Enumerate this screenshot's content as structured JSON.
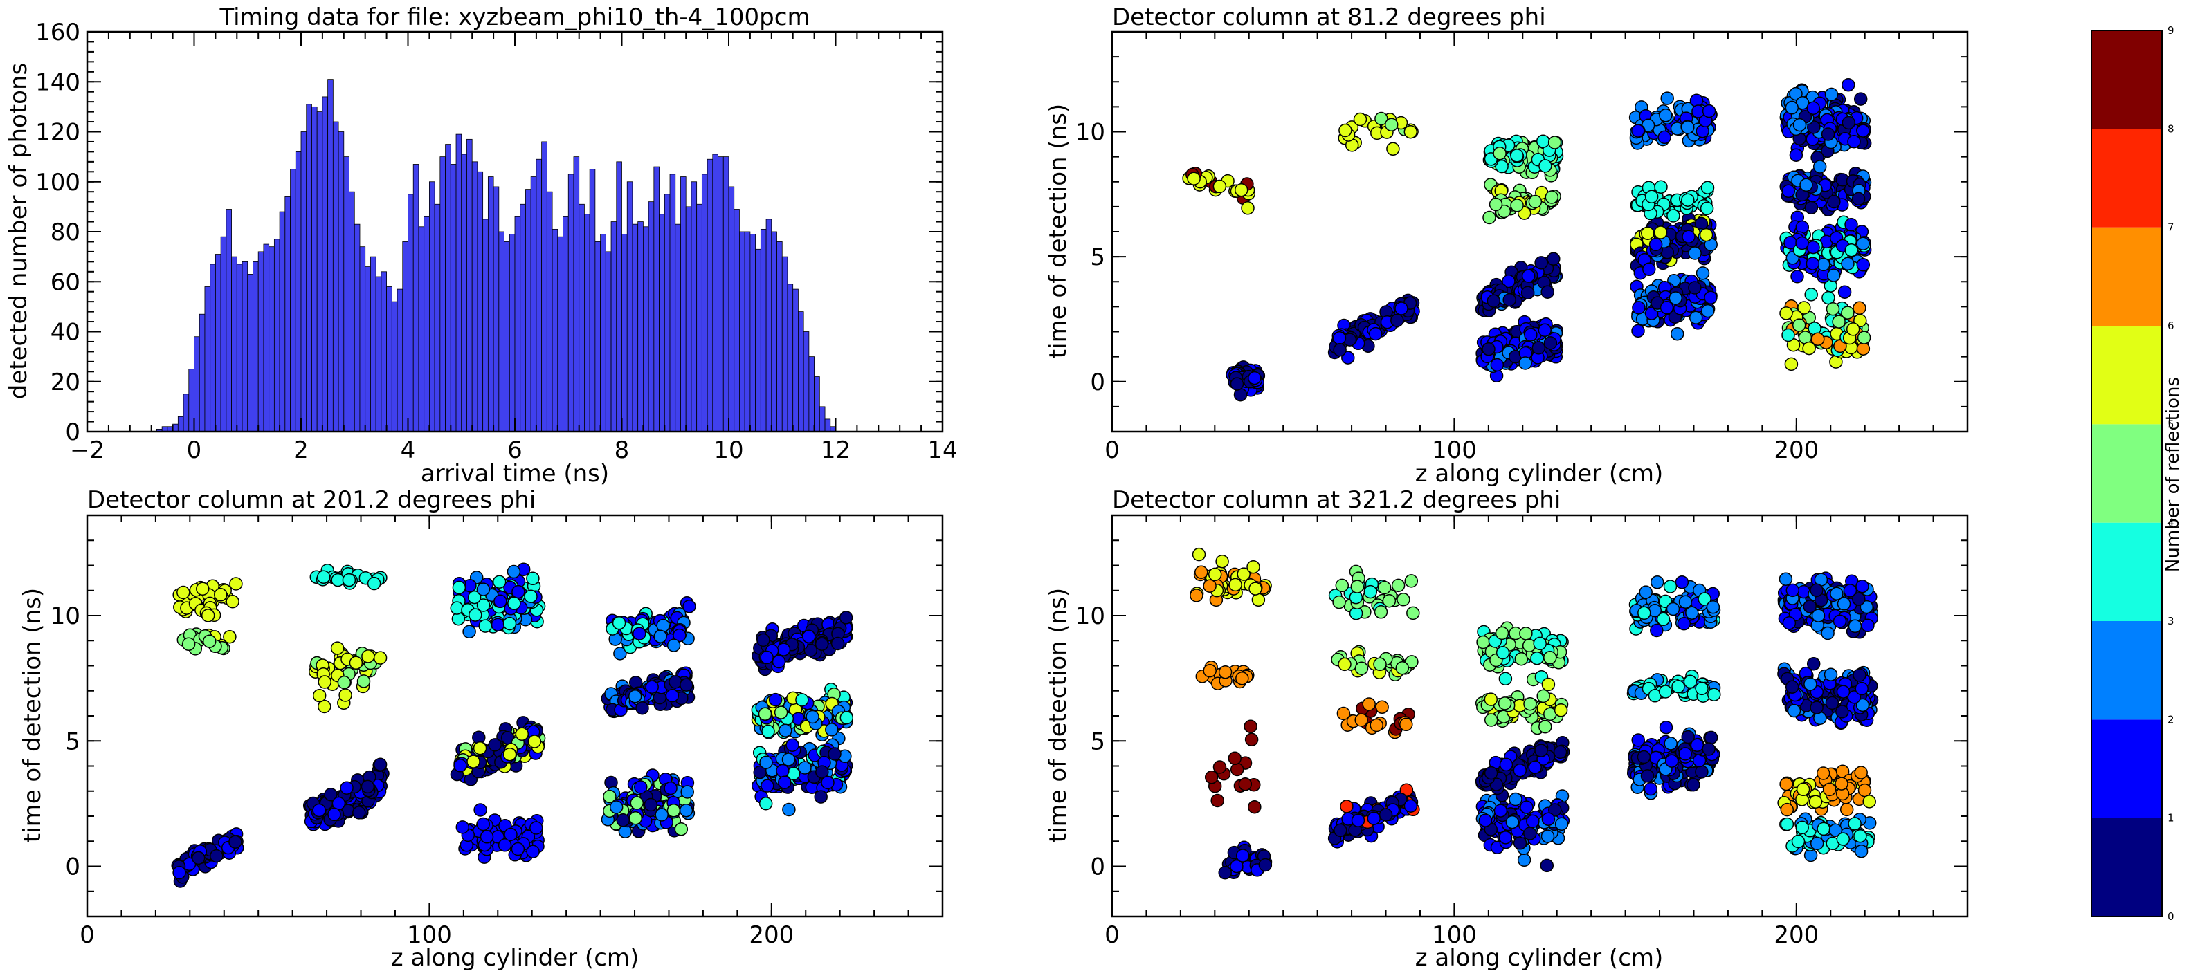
{
  "chart_data": [
    {
      "type": "bar",
      "title": "Timing data for file: xyzbeam_phi10_th-4_100pcm",
      "xlabel": "arrival time (ns)",
      "ylabel": "detected number of photons",
      "xlim": [
        -2,
        14
      ],
      "ylim": [
        0,
        160
      ],
      "xticks": [
        "−2",
        "0",
        "2",
        "4",
        "6",
        "8",
        "10",
        "12",
        "14"
      ],
      "yticks": [
        "0",
        "20",
        "40",
        "60",
        "80",
        "100",
        "120",
        "140",
        "160"
      ],
      "bar_color": "#4040ee",
      "bin_start": -0.7,
      "bin_width": 0.1,
      "values": [
        1,
        2,
        2,
        3,
        6,
        15,
        25,
        38,
        47,
        58,
        67,
        71,
        78,
        89,
        70,
        67,
        68,
        63,
        68,
        72,
        75,
        74,
        77,
        88,
        94,
        105,
        112,
        120,
        131,
        130,
        128,
        134,
        141,
        124,
        120,
        110,
        96,
        83,
        74,
        66,
        70,
        62,
        64,
        58,
        52,
        57,
        76,
        95,
        107,
        82,
        86,
        100,
        91,
        110,
        115,
        107,
        119,
        111,
        117,
        108,
        104,
        85,
        102,
        98,
        80,
        76,
        79,
        86,
        91,
        97,
        102,
        109,
        116,
        96,
        81,
        78,
        86,
        103,
        110,
        91,
        87,
        105,
        76,
        79,
        72,
        84,
        108,
        79,
        100,
        83,
        84,
        82,
        92,
        106,
        87,
        95,
        103,
        83,
        102,
        90,
        100,
        91,
        103,
        109,
        111,
        110,
        110,
        98,
        89,
        80,
        80,
        79,
        73,
        81,
        85,
        80,
        76,
        70,
        59,
        57,
        48,
        40,
        30,
        22,
        10,
        5,
        2
      ],
      "grid": false
    },
    {
      "type": "scatter",
      "title": "Detector column at 81.2 degrees phi",
      "xlabel": "z along cylinder (cm)",
      "ylabel": "time of detection (ns)",
      "xlim": [
        0,
        250
      ],
      "ylim": [
        -2,
        14
      ],
      "xticks": [
        "0",
        "100",
        "200"
      ],
      "yticks": [
        "0",
        "5",
        "10"
      ],
      "clusters": [
        {
          "z_range": [
            35,
            43
          ],
          "t_center": 0.2,
          "t_spread": 0.5,
          "dz_dt": 0,
          "n": 55,
          "reflections": [
            0,
            0,
            0,
            1,
            1
          ]
        },
        {
          "z_range": [
            65,
            88
          ],
          "t_center": 2.2,
          "t_spread": 0.5,
          "dz_dt": 0.06,
          "n": 90,
          "reflections": [
            0,
            0,
            1,
            1
          ]
        },
        {
          "z_range": [
            108,
            130
          ],
          "t_center": 1.4,
          "t_spread": 0.9,
          "dz_dt": 0.03,
          "n": 140,
          "reflections": [
            1,
            1,
            1,
            2,
            0
          ]
        },
        {
          "z_range": [
            108,
            130
          ],
          "t_center": 3.8,
          "t_spread": 0.6,
          "dz_dt": 0.05,
          "n": 120,
          "reflections": [
            0,
            0,
            0,
            1,
            2
          ]
        },
        {
          "z_range": [
            110,
            130
          ],
          "t_center": 9.0,
          "t_spread": 0.8,
          "dz_dt": 0,
          "n": 90,
          "reflections": [
            3,
            3,
            4,
            4,
            3
          ]
        },
        {
          "z_range": [
            110,
            130
          ],
          "t_center": 7.2,
          "t_spread": 0.6,
          "dz_dt": 0,
          "n": 40,
          "reflections": [
            4,
            4,
            5
          ]
        },
        {
          "z_range": [
            153,
            175
          ],
          "t_center": 5.6,
          "t_spread": 0.8,
          "dz_dt": 0.03,
          "n": 160,
          "reflections": [
            0,
            0,
            0,
            1,
            2,
            5
          ]
        },
        {
          "z_range": [
            153,
            175
          ],
          "t_center": 3.2,
          "t_spread": 0.9,
          "dz_dt": 0.03,
          "n": 140,
          "reflections": [
            1,
            1,
            2,
            0
          ]
        },
        {
          "z_range": [
            153,
            175
          ],
          "t_center": 10.3,
          "t_spread": 0.9,
          "dz_dt": 0,
          "n": 90,
          "reflections": [
            2,
            2,
            1
          ]
        },
        {
          "z_range": [
            153,
            175
          ],
          "t_center": 7.2,
          "t_spread": 0.6,
          "dz_dt": 0,
          "n": 50,
          "reflections": [
            3,
            3,
            3
          ]
        },
        {
          "z_range": [
            197,
            220
          ],
          "t_center": 10.3,
          "t_spread": 1.2,
          "dz_dt": 0,
          "n": 180,
          "reflections": [
            1,
            1,
            2,
            0
          ]
        },
        {
          "z_range": [
            197,
            220
          ],
          "t_center": 7.7,
          "t_spread": 0.8,
          "dz_dt": 0,
          "n": 120,
          "reflections": [
            0,
            0,
            1,
            2
          ]
        },
        {
          "z_range": [
            197,
            220
          ],
          "t_center": 5.3,
          "t_spread": 1.1,
          "dz_dt": 0,
          "n": 130,
          "reflections": [
            1,
            1,
            2,
            3
          ]
        },
        {
          "z_range": [
            197,
            220
          ],
          "t_center": 2.0,
          "t_spread": 1.4,
          "dz_dt": 0,
          "n": 70,
          "reflections": [
            3,
            4,
            5,
            6
          ]
        },
        {
          "z_range": [
            22,
            40
          ],
          "t_center": 7.8,
          "t_spread": 0.5,
          "dz_dt": -0.04,
          "n": 22,
          "reflections": [
            5,
            5,
            5,
            9
          ]
        },
        {
          "z_range": [
            68,
            88
          ],
          "t_center": 10.0,
          "t_spread": 0.9,
          "dz_dt": 0,
          "n": 22,
          "reflections": [
            5,
            5,
            4
          ]
        }
      ],
      "colorbar": {
        "label": "Number of reflections",
        "ticks": [
          "0",
          "1",
          "2",
          "3",
          "4",
          "5",
          "6",
          "7",
          "8",
          "9"
        ],
        "colors": [
          "#000080",
          "#0000ff",
          "#0080ff",
          "#15ffe1",
          "#80ff80",
          "#e1ff15",
          "#ff8f00",
          "#ff2600",
          "#800000"
        ]
      }
    },
    {
      "type": "scatter",
      "title": "Detector column at 201.2 degrees phi",
      "xlabel": "z along cylinder (cm)",
      "ylabel": "time of detection (ns)",
      "xlim": [
        0,
        250
      ],
      "ylim": [
        -2,
        14
      ],
      "xticks": [
        "0",
        "100",
        "200"
      ],
      "yticks": [
        "0",
        "5",
        "10"
      ],
      "clusters": [
        {
          "z_range": [
            26,
            44
          ],
          "t_center": 0.5,
          "t_spread": 0.6,
          "dz_dt": 0.06,
          "n": 70,
          "reflections": [
            0,
            0,
            1,
            1
          ]
        },
        {
          "z_range": [
            65,
            87
          ],
          "t_center": 2.6,
          "t_spread": 0.7,
          "dz_dt": 0.07,
          "n": 110,
          "reflections": [
            0,
            0,
            1
          ]
        },
        {
          "z_range": [
            108,
            132
          ],
          "t_center": 4.6,
          "t_spread": 0.7,
          "dz_dt": 0.05,
          "n": 120,
          "reflections": [
            0,
            0,
            1,
            4,
            5
          ]
        },
        {
          "z_range": [
            108,
            132
          ],
          "t_center": 1.2,
          "t_spread": 0.8,
          "dz_dt": 0,
          "n": 70,
          "reflections": [
            1,
            1,
            1
          ]
        },
        {
          "z_range": [
            108,
            132
          ],
          "t_center": 10.6,
          "t_spread": 1.0,
          "dz_dt": 0,
          "n": 110,
          "reflections": [
            3,
            3,
            2,
            1
          ]
        },
        {
          "z_range": [
            152,
            176
          ],
          "t_center": 2.4,
          "t_spread": 1.0,
          "dz_dt": 0,
          "n": 130,
          "reflections": [
            1,
            2,
            0,
            4
          ]
        },
        {
          "z_range": [
            152,
            176
          ],
          "t_center": 6.9,
          "t_spread": 0.6,
          "dz_dt": 0.03,
          "n": 120,
          "reflections": [
            0,
            0,
            1,
            2
          ]
        },
        {
          "z_range": [
            152,
            176
          ],
          "t_center": 9.4,
          "t_spread": 0.8,
          "dz_dt": 0,
          "n": 70,
          "reflections": [
            2,
            3,
            1
          ]
        },
        {
          "z_range": [
            196,
            222
          ],
          "t_center": 8.9,
          "t_spread": 0.7,
          "dz_dt": 0.04,
          "n": 140,
          "reflections": [
            0,
            0,
            1
          ]
        },
        {
          "z_range": [
            196,
            222
          ],
          "t_center": 6.0,
          "t_spread": 1.0,
          "dz_dt": 0,
          "n": 140,
          "reflections": [
            3,
            2,
            4,
            5,
            1
          ]
        },
        {
          "z_range": [
            196,
            222
          ],
          "t_center": 3.8,
          "t_spread": 1.1,
          "dz_dt": 0,
          "n": 120,
          "reflections": [
            1,
            1,
            2,
            0,
            3
          ]
        },
        {
          "z_range": [
            26,
            44
          ],
          "t_center": 10.7,
          "t_spread": 0.7,
          "dz_dt": 0,
          "n": 30,
          "reflections": [
            5,
            5
          ]
        },
        {
          "z_range": [
            28,
            44
          ],
          "t_center": 9.0,
          "t_spread": 0.5,
          "dz_dt": 0,
          "n": 22,
          "reflections": [
            4,
            4,
            5
          ]
        },
        {
          "z_range": [
            66,
            86
          ],
          "t_center": 8.0,
          "t_spread": 1.2,
          "dz_dt": 0,
          "n": 40,
          "reflections": [
            4,
            5,
            5
          ]
        },
        {
          "z_range": [
            66,
            86
          ],
          "t_center": 11.5,
          "t_spread": 0.3,
          "dz_dt": 0,
          "n": 20,
          "reflections": [
            3,
            3
          ]
        }
      ],
      "colorbar": {
        "label": "Number of reflections",
        "ticks": [
          "0",
          "1",
          "2",
          "3",
          "4",
          "5",
          "6",
          "7",
          "8",
          "9"
        ],
        "colors": [
          "#000080",
          "#0000ff",
          "#0080ff",
          "#15ffe1",
          "#80ff80",
          "#e1ff15",
          "#ff8f00",
          "#ff2600",
          "#800000"
        ]
      }
    },
    {
      "type": "scatter",
      "title": "Detector column at 321.2 degrees phi",
      "xlabel": "z along cylinder (cm)",
      "ylabel": "time of detection (ns)",
      "xlim": [
        0,
        250
      ],
      "ylim": [
        -2,
        14
      ],
      "xticks": [
        "0",
        "100",
        "200"
      ],
      "yticks": [
        "0",
        "5",
        "10"
      ],
      "clusters": [
        {
          "z_range": [
            33,
            45
          ],
          "t_center": 0.2,
          "t_spread": 0.6,
          "dz_dt": 0,
          "n": 40,
          "reflections": [
            0,
            0,
            1
          ]
        },
        {
          "z_range": [
            65,
            88
          ],
          "t_center": 2.0,
          "t_spread": 0.6,
          "dz_dt": 0.05,
          "n": 110,
          "reflections": [
            0,
            0,
            1,
            1,
            7
          ]
        },
        {
          "z_range": [
            108,
            132
          ],
          "t_center": 1.8,
          "t_spread": 1.1,
          "dz_dt": 0,
          "n": 120,
          "reflections": [
            1,
            1,
            0,
            2
          ]
        },
        {
          "z_range": [
            108,
            132
          ],
          "t_center": 4.0,
          "t_spread": 0.5,
          "dz_dt": 0.05,
          "n": 100,
          "reflections": [
            0,
            0,
            1
          ]
        },
        {
          "z_range": [
            108,
            132
          ],
          "t_center": 8.6,
          "t_spread": 0.9,
          "dz_dt": 0,
          "n": 90,
          "reflections": [
            3,
            3,
            4,
            4
          ]
        },
        {
          "z_range": [
            108,
            132
          ],
          "t_center": 6.3,
          "t_spread": 0.6,
          "dz_dt": 0,
          "n": 50,
          "reflections": [
            4,
            4,
            5
          ]
        },
        {
          "z_range": [
            152,
            176
          ],
          "t_center": 4.2,
          "t_spread": 1.2,
          "dz_dt": 0.02,
          "n": 150,
          "reflections": [
            0,
            0,
            1,
            1,
            2
          ]
        },
        {
          "z_range": [
            152,
            176
          ],
          "t_center": 10.3,
          "t_spread": 0.9,
          "dz_dt": 0,
          "n": 90,
          "reflections": [
            1,
            2,
            2,
            3
          ]
        },
        {
          "z_range": [
            152,
            176
          ],
          "t_center": 7.1,
          "t_spread": 0.4,
          "dz_dt": 0,
          "n": 50,
          "reflections": [
            3,
            3,
            2
          ]
        },
        {
          "z_range": [
            196,
            222
          ],
          "t_center": 10.4,
          "t_spread": 1.0,
          "dz_dt": 0,
          "n": 170,
          "reflections": [
            1,
            1,
            2,
            0
          ]
        },
        {
          "z_range": [
            196,
            222
          ],
          "t_center": 6.8,
          "t_spread": 1.1,
          "dz_dt": 0,
          "n": 160,
          "reflections": [
            0,
            0,
            1,
            1,
            2
          ]
        },
        {
          "z_range": [
            196,
            222
          ],
          "t_center": 3.0,
          "t_spread": 0.8,
          "dz_dt": 0.03,
          "n": 60,
          "reflections": [
            6,
            6,
            5
          ]
        },
        {
          "z_range": [
            196,
            222
          ],
          "t_center": 1.2,
          "t_spread": 0.8,
          "dz_dt": 0,
          "n": 60,
          "reflections": [
            2,
            3,
            3
          ]
        },
        {
          "z_range": [
            24,
            45
          ],
          "t_center": 11.3,
          "t_spread": 0.7,
          "dz_dt": 0,
          "n": 40,
          "reflections": [
            5,
            5,
            5,
            6
          ]
        },
        {
          "z_range": [
            24,
            40
          ],
          "t_center": 7.6,
          "t_spread": 0.5,
          "dz_dt": 0,
          "n": 20,
          "reflections": [
            6,
            6
          ]
        },
        {
          "z_range": [
            28,
            42
          ],
          "t_center": 3.3,
          "t_spread": 1.7,
          "dz_dt": 0,
          "n": 14,
          "reflections": [
            8,
            8
          ]
        },
        {
          "z_range": [
            65,
            88
          ],
          "t_center": 10.8,
          "t_spread": 0.9,
          "dz_dt": 0,
          "n": 30,
          "reflections": [
            4,
            4,
            3
          ]
        },
        {
          "z_range": [
            65,
            88
          ],
          "t_center": 8.1,
          "t_spread": 0.5,
          "dz_dt": 0,
          "n": 25,
          "reflections": [
            4,
            5,
            4
          ]
        },
        {
          "z_range": [
            65,
            88
          ],
          "t_center": 5.8,
          "t_spread": 0.6,
          "dz_dt": 0,
          "n": 20,
          "reflections": [
            6,
            6,
            8
          ]
        }
      ],
      "colorbar": {
        "label": "Number of reflections",
        "ticks": [
          "0",
          "1",
          "2",
          "3",
          "4",
          "5",
          "6",
          "7",
          "8",
          "9"
        ],
        "colors": [
          "#000080",
          "#0000ff",
          "#0080ff",
          "#15ffe1",
          "#80ff80",
          "#e1ff15",
          "#ff8f00",
          "#ff2600",
          "#800000"
        ]
      }
    }
  ]
}
